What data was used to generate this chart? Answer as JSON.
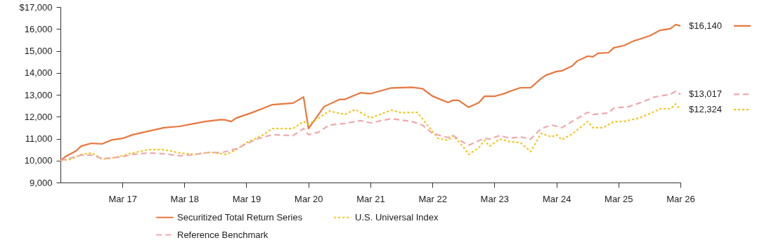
{
  "chart_data": {
    "type": "line",
    "legend": "bottom",
    "grid": false,
    "xlim": [
      "2016-03",
      "2026-03"
    ],
    "xticks": [
      {
        "value": "2017-03",
        "label": "Mar 17"
      },
      {
        "value": "2018-03",
        "label": "Mar 18"
      },
      {
        "value": "2019-03",
        "label": "Mar 19"
      },
      {
        "value": "2020-03",
        "label": "Mar 20"
      },
      {
        "value": "2021-03",
        "label": "Mar 21"
      },
      {
        "value": "2022-03",
        "label": "Mar 22"
      },
      {
        "value": "2023-03",
        "label": "Mar 23"
      },
      {
        "value": "2024-03",
        "label": "Mar 24"
      },
      {
        "value": "2025-03",
        "label": "Mar 25"
      },
      {
        "value": "2026-03",
        "label": "Mar 26"
      }
    ],
    "ylim": [
      9000,
      17000
    ],
    "yticks": [
      {
        "value": 9000,
        "label": "9,000"
      },
      {
        "value": 10000,
        "label": "10,000"
      },
      {
        "value": 11000,
        "label": "11,000"
      },
      {
        "value": 12000,
        "label": "12,000"
      },
      {
        "value": 13000,
        "label": "13,000"
      },
      {
        "value": 14000,
        "label": "14,000"
      },
      {
        "value": 15000,
        "label": "15,000"
      },
      {
        "value": 16000,
        "label": "16,000"
      },
      {
        "value": 17000,
        "label": "$17,000"
      }
    ],
    "series": [
      {
        "name": "Securitized Total Return Series",
        "color": "#e8773d",
        "line_style": "solid",
        "x": [
          "2016-03",
          "2016-04",
          "2016-06",
          "2016-07",
          "2016-09",
          "2016-11",
          "2017-01",
          "2017-03",
          "2017-05",
          "2017-08",
          "2017-11",
          "2018-02",
          "2018-05",
          "2018-07",
          "2018-10",
          "2018-11",
          "2018-12",
          "2019-01",
          "2019-04",
          "2019-06",
          "2019-08",
          "2019-12",
          "2020-02",
          "2020-03",
          "2020-06",
          "2020-09",
          "2020-10",
          "2021-01",
          "2021-03",
          "2021-07",
          "2021-11",
          "2022-01",
          "2022-03",
          "2022-06",
          "2022-07",
          "2022-08",
          "2022-10",
          "2022-12",
          "2023-01",
          "2023-03",
          "2023-05",
          "2023-06",
          "2023-08",
          "2023-10",
          "2023-12",
          "2024-01",
          "2024-03",
          "2024-04",
          "2024-06",
          "2024-07",
          "2024-09",
          "2024-10",
          "2024-11",
          "2025-01",
          "2025-02",
          "2025-04",
          "2025-06",
          "2025-07",
          "2025-09",
          "2025-11",
          "2026-01",
          "2026-02",
          "2026-03"
        ],
        "values": [
          10000,
          10190,
          10440,
          10660,
          10790,
          10760,
          10950,
          11010,
          11180,
          11340,
          11500,
          11560,
          11690,
          11780,
          11870,
          11850,
          11780,
          11940,
          12180,
          12360,
          12550,
          12620,
          12900,
          11460,
          12460,
          12790,
          12790,
          13090,
          13050,
          13310,
          13340,
          13280,
          12940,
          12650,
          12750,
          12750,
          12430,
          12650,
          12930,
          12930,
          13060,
          13160,
          13320,
          13320,
          13740,
          13900,
          14060,
          14090,
          14310,
          14540,
          14760,
          14730,
          14890,
          14920,
          15140,
          15240,
          15460,
          15530,
          15690,
          15940,
          16010,
          16200,
          16140
        ],
        "value_labels": [
          null,
          null,
          null,
          null,
          null,
          null,
          null,
          null,
          null,
          null,
          null,
          null,
          null,
          null,
          null,
          null,
          null,
          null,
          null,
          null,
          null,
          null,
          null,
          null,
          null,
          null,
          null,
          null,
          null,
          null,
          null,
          null,
          null,
          null,
          null,
          null,
          null,
          null,
          null,
          null,
          null,
          null,
          null,
          null,
          null,
          null,
          null,
          null,
          null,
          null,
          null,
          null,
          null,
          null,
          null,
          null,
          null,
          null,
          null,
          null,
          null,
          null,
          "$16,140"
        ]
      },
      {
        "name": "U.S. Universal Index",
        "color": "#f5c518",
        "line_style": "dotted",
        "x": [
          "2016-03",
          "2016-05",
          "2016-07",
          "2016-09",
          "2016-10",
          "2016-11",
          "2017-01",
          "2017-03",
          "2017-05",
          "2017-08",
          "2017-11",
          "2018-02",
          "2018-05",
          "2018-08",
          "2018-11",
          "2019-01",
          "2019-03",
          "2019-06",
          "2019-08",
          "2019-12",
          "2020-02",
          "2020-03",
          "2020-05",
          "2020-07",
          "2020-10",
          "2020-12",
          "2021-03",
          "2021-07",
          "2021-09",
          "2021-12",
          "2022-03",
          "2022-04",
          "2022-06",
          "2022-07",
          "2022-09",
          "2022-10",
          "2022-12",
          "2023-01",
          "2023-02",
          "2023-04",
          "2023-06",
          "2023-08",
          "2023-10",
          "2023-12",
          "2024-02",
          "2024-03",
          "2024-04",
          "2024-06",
          "2024-09",
          "2024-10",
          "2024-12",
          "2025-02",
          "2025-04",
          "2025-07",
          "2025-09",
          "2025-11",
          "2026-01",
          "2026-02",
          "2026-03"
        ],
        "values": [
          10000,
          10060,
          10280,
          10350,
          10220,
          10060,
          10120,
          10220,
          10350,
          10500,
          10500,
          10350,
          10280,
          10380,
          10280,
          10500,
          10820,
          11140,
          11460,
          11460,
          11780,
          11650,
          11940,
          12260,
          12100,
          12330,
          11940,
          12300,
          12180,
          12200,
          11340,
          11020,
          10920,
          11140,
          10600,
          10280,
          10600,
          10920,
          10660,
          10980,
          10860,
          10820,
          10410,
          11240,
          11080,
          11180,
          10950,
          11210,
          11780,
          11500,
          11500,
          11780,
          11780,
          11940,
          12140,
          12360,
          12360,
          12580,
          12324
        ],
        "value_labels": [
          null,
          null,
          null,
          null,
          null,
          null,
          null,
          null,
          null,
          null,
          null,
          null,
          null,
          null,
          null,
          null,
          null,
          null,
          null,
          null,
          null,
          null,
          null,
          null,
          null,
          null,
          null,
          null,
          null,
          null,
          null,
          null,
          null,
          null,
          null,
          null,
          null,
          null,
          null,
          null,
          null,
          null,
          null,
          null,
          null,
          null,
          null,
          null,
          null,
          null,
          null,
          null,
          null,
          null,
          null,
          null,
          null,
          null,
          "$12,324"
        ]
      },
      {
        "name": "Reference Benchmark",
        "color": "#eea9ad",
        "line_style": "dashed",
        "x": [
          "2016-03",
          "2016-05",
          "2016-07",
          "2016-09",
          "2016-11",
          "2017-01",
          "2017-03",
          "2017-05",
          "2017-08",
          "2017-11",
          "2018-02",
          "2018-04",
          "2018-08",
          "2018-10",
          "2019-01",
          "2019-03",
          "2019-05",
          "2019-08",
          "2019-12",
          "2020-02",
          "2020-03",
          "2020-05",
          "2020-07",
          "2020-10",
          "2021-01",
          "2021-03",
          "2021-07",
          "2021-11",
          "2022-01",
          "2022-03",
          "2022-06",
          "2022-07",
          "2022-09",
          "2022-10",
          "2023-01",
          "2023-02",
          "2023-04",
          "2023-06",
          "2023-08",
          "2023-10",
          "2023-12",
          "2024-02",
          "2024-04",
          "2024-06",
          "2024-09",
          "2024-10",
          "2025-01",
          "2025-02",
          "2025-05",
          "2025-07",
          "2025-10",
          "2026-01",
          "2026-02",
          "2026-03"
        ],
        "values": [
          10000,
          10120,
          10250,
          10250,
          10090,
          10120,
          10180,
          10280,
          10350,
          10310,
          10220,
          10250,
          10380,
          10350,
          10540,
          10760,
          10980,
          11180,
          11140,
          11460,
          11180,
          11300,
          11620,
          11690,
          11820,
          11720,
          11910,
          11780,
          11620,
          11240,
          11050,
          11140,
          10820,
          10700,
          11020,
          10980,
          11140,
          11020,
          11080,
          10980,
          11460,
          11620,
          11500,
          11780,
          12200,
          12100,
          12170,
          12390,
          12460,
          12620,
          12900,
          13020,
          13160,
          13017
        ],
        "value_labels": [
          null,
          null,
          null,
          null,
          null,
          null,
          null,
          null,
          null,
          null,
          null,
          null,
          null,
          null,
          null,
          null,
          null,
          null,
          null,
          null,
          null,
          null,
          null,
          null,
          null,
          null,
          null,
          null,
          null,
          null,
          null,
          null,
          null,
          null,
          null,
          null,
          null,
          null,
          null,
          null,
          null,
          null,
          null,
          null,
          null,
          null,
          null,
          null,
          null,
          null,
          null,
          null,
          null,
          "$13,017"
        ]
      }
    ]
  }
}
